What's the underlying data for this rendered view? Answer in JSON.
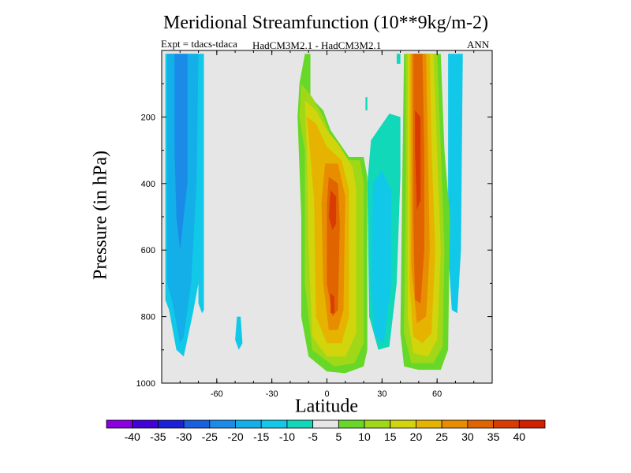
{
  "chart_data": {
    "type": "heatmap",
    "title": "Meridional Streamfunction (10**9kg/m-2)",
    "expt_label": "Expt = tdacs-tdaca",
    "models_label": "HadCM3M2.1 - HadCM3M2.1",
    "season_label": "ANN",
    "xlabel": "Latitude",
    "ylabel": "Pressure (in hPa)",
    "xlim": [
      -90,
      90
    ],
    "ylim": [
      0,
      1000
    ],
    "x_ticks": [
      -60,
      -30,
      0,
      30,
      60
    ],
    "y_ticks": [
      200,
      400,
      600,
      800,
      1000
    ],
    "x_tick_labels": [
      "-60",
      "-30",
      "0",
      "30",
      "60"
    ],
    "y_tick_labels": [
      "200",
      "400",
      "600",
      "800",
      "1000"
    ],
    "colorbar": {
      "labels": [
        "-40",
        "-35",
        "-30",
        "-25",
        "-20",
        "-15",
        "-10",
        "-5",
        "5",
        "10",
        "15",
        "20",
        "25",
        "30",
        "35",
        "40"
      ],
      "colors": [
        "#8a00e0",
        "#4400d8",
        "#1c20d8",
        "#1860e0",
        "#1a8ce8",
        "#14aee8",
        "#12c8e8",
        "#10d8b8",
        "#e6e6e6",
        "#68d828",
        "#a0d818",
        "#d2d40c",
        "#e6b400",
        "#e88c00",
        "#e06400",
        "#d83c00",
        "#d02000"
      ]
    },
    "background_color": "#e6e6e6",
    "features": [
      {
        "name": "positive-cell-equator",
        "lat_range": [
          -15,
          25
        ],
        "pressure_range": [
          10,
          970
        ],
        "max_level": 35,
        "core_lat": 4,
        "core_pressure": 470
      },
      {
        "name": "positive-cell-north-midlat",
        "lat_range": [
          40,
          67
        ],
        "pressure_range": [
          10,
          960
        ],
        "max_level": 35,
        "core_lat": 50,
        "core_pressure": 500
      },
      {
        "name": "negative-cell-far-south",
        "lat_range": [
          -88,
          -68
        ],
        "pressure_range": [
          10,
          920
        ],
        "min_level": -20
      },
      {
        "name": "negative-band-south",
        "lat_range": [
          -70,
          -65
        ],
        "pressure_range": [
          10,
          790
        ],
        "min_level": -10
      },
      {
        "name": "negative-blob-south",
        "lat_range": [
          -50,
          -46
        ],
        "pressure_range": [
          800,
          900
        ],
        "min_level": -10
      },
      {
        "name": "negative-cell-subtropics",
        "lat_range": [
          22,
          40
        ],
        "pressure_range": [
          200,
          910
        ],
        "min_level": -10
      },
      {
        "name": "negative-band-north",
        "lat_range": [
          66,
          74
        ],
        "pressure_range": [
          10,
          790
        ],
        "min_level": -10
      }
    ]
  }
}
